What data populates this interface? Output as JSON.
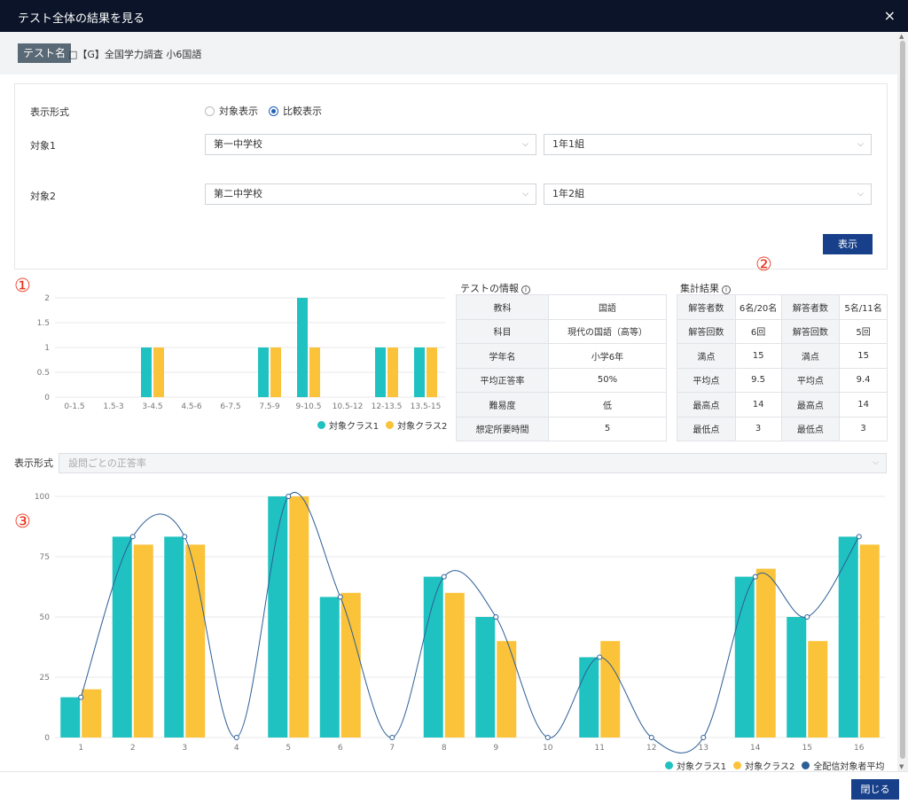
{
  "window": {
    "title": "テスト全体の結果を見る",
    "close_glyph": "×"
  },
  "test": {
    "label": "テスト名",
    "value": "□【G】全国学力調査 小6国語"
  },
  "form": {
    "display_label": "表示形式",
    "radio_target": "対象表示",
    "radio_compare": "比較表示",
    "selected": "比較表示",
    "target1_label": "対象1",
    "target1_school": "第一中学校",
    "target1_class": "1年1組",
    "target2_label": "対象2",
    "target2_school": "第二中学校",
    "target2_class": "1年2組",
    "show_button": "表示"
  },
  "markers": {
    "m1": "①",
    "m2": "②",
    "m3": "③"
  },
  "colors": {
    "series1": "#1fc2c0",
    "series2": "#fbc33a",
    "average": "#2d5e96",
    "header": "#0b1428",
    "button": "#173f8a"
  },
  "test_info": {
    "title": "テストの情報",
    "rows": [
      {
        "k": "教科",
        "v": "国語"
      },
      {
        "k": "科目",
        "v": "現代の国語（高等）"
      },
      {
        "k": "学年名",
        "v": "小学6年"
      },
      {
        "k": "平均正答率",
        "v": "50%"
      },
      {
        "k": "難易度",
        "v": "低"
      },
      {
        "k": "想定所要時間",
        "v": "5"
      }
    ]
  },
  "summary": {
    "title": "集計結果",
    "rows": [
      {
        "k1": "解答者数",
        "v1": "6名/20名",
        "k2": "解答者数",
        "v2": "5名/11名"
      },
      {
        "k1": "解答回数",
        "v1": "6回",
        "k2": "解答回数",
        "v2": "5回"
      },
      {
        "k1": "満点",
        "v1": "15",
        "k2": "満点",
        "v2": "15"
      },
      {
        "k1": "平均点",
        "v1": "9.5",
        "k2": "平均点",
        "v2": "9.4"
      },
      {
        "k1": "最高点",
        "v1": "14",
        "k2": "最高点",
        "v2": "14"
      },
      {
        "k1": "最低点",
        "v1": "3",
        "k2": "最低点",
        "v2": "3"
      }
    ]
  },
  "question_display": {
    "label": "表示形式",
    "value": "設問ごとの正答率"
  },
  "legend1": {
    "s1": "対象クラス1",
    "s2": "対象クラス2"
  },
  "legend2": {
    "s1": "対象クラス1",
    "s2": "対象クラス2",
    "s3": "全配信対象者平均"
  },
  "footer": {
    "close_button": "閉じる"
  },
  "chart_data": [
    {
      "type": "bar",
      "categories": [
        "0-1.5",
        "1.5-3",
        "3-4.5",
        "4.5-6",
        "6-7.5",
        "7.5-9",
        "9-10.5",
        "10.5-12",
        "12-13.5",
        "13.5-15"
      ],
      "series": [
        {
          "name": "対象クラス1",
          "values": [
            0,
            0,
            1,
            0,
            0,
            1,
            2,
            0,
            1,
            1
          ]
        },
        {
          "name": "対象クラス2",
          "values": [
            0,
            0,
            1,
            0,
            0,
            1,
            1,
            0,
            1,
            1
          ]
        }
      ],
      "yticks": [
        "0",
        "0.5",
        "1",
        "1.5",
        "2"
      ],
      "ylim": [
        0,
        2
      ],
      "grid": true,
      "legend": "bottom-right"
    },
    {
      "type": "bar",
      "categories": [
        "1",
        "2",
        "3",
        "4",
        "5",
        "6",
        "7",
        "8",
        "9",
        "10",
        "11",
        "12",
        "13",
        "14",
        "15",
        "16"
      ],
      "series": [
        {
          "name": "対象クラス1",
          "values": [
            16.7,
            83.3,
            83.3,
            0,
            100,
            58.3,
            0,
            66.7,
            50,
            0,
            33.3,
            0,
            0,
            66.7,
            50,
            83.3
          ]
        },
        {
          "name": "対象クラス2",
          "values": [
            20,
            80,
            80,
            0,
            100,
            60,
            0,
            60,
            40,
            0,
            40,
            0,
            0,
            70,
            40,
            80
          ]
        },
        {
          "name": "全配信対象者平均",
          "type": "line",
          "values": [
            16.7,
            83.3,
            83.3,
            0,
            100,
            58.3,
            0,
            66.7,
            50,
            0,
            33.3,
            0,
            0,
            66.7,
            50,
            83.3
          ]
        }
      ],
      "yticks": [
        "0",
        "25",
        "50",
        "75",
        "100"
      ],
      "ylim": [
        0,
        100
      ],
      "grid": true,
      "legend": "bottom-right"
    }
  ]
}
